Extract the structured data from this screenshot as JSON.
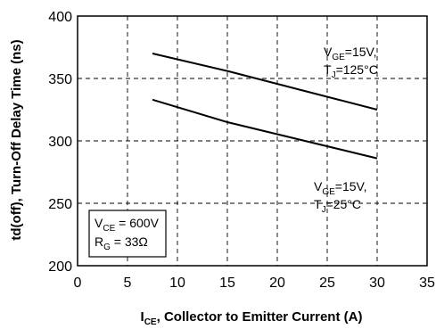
{
  "chart_data": {
    "type": "line",
    "xlabel_main": "I",
    "xlabel_sub": "CE",
    "xlabel_rest": ", Collector to Emitter Current (A)",
    "ylabel": "td(off), Turn-Off Delay Time  (ns)",
    "xlim": [
      0,
      35
    ],
    "ylim": [
      200,
      400
    ],
    "xticks": [
      0,
      5,
      10,
      15,
      20,
      25,
      30,
      35
    ],
    "yticks": [
      200,
      250,
      300,
      350,
      400
    ],
    "grid": true,
    "series": [
      {
        "x": [
          7.5,
          15,
          30
        ],
        "y": [
          370,
          356,
          325
        ],
        "label_lines": [
          {
            "main": "V",
            "sub": "GE",
            "rest": "=15V,"
          },
          {
            "main": "T",
            "sub": "J",
            "rest": "=125°C"
          }
        ]
      },
      {
        "x": [
          7.5,
          15,
          30
        ],
        "y": [
          333,
          315,
          286
        ],
        "label_lines": [
          {
            "main": "V",
            "sub": "GE",
            "rest": "=15V,"
          },
          {
            "main": "T",
            "sub": "J",
            "rest": "=25°C"
          }
        ]
      }
    ],
    "conditions_box": [
      {
        "main": "V",
        "sub": "CE",
        "rest": " = 600V"
      },
      {
        "main": "R",
        "sub": "G",
        "rest": " = 33Ω"
      }
    ]
  }
}
